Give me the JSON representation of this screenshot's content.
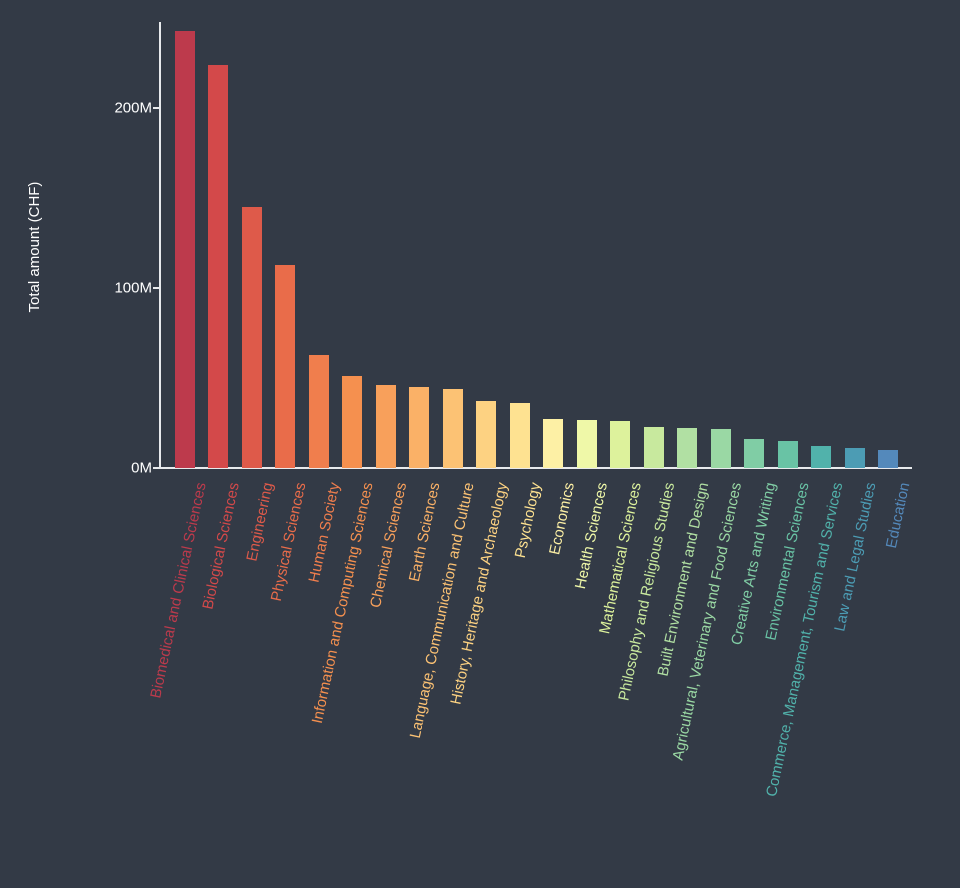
{
  "chart_data": {
    "type": "bar",
    "title": "",
    "xlabel": "",
    "ylabel": "Total amount (CHF)",
    "ylim": [
      0,
      250
    ],
    "grid": false,
    "legend": "none",
    "yticks": [
      {
        "value": 0,
        "label": "0M"
      },
      {
        "value": 100,
        "label": "100M"
      },
      {
        "value": 200,
        "label": "200M"
      }
    ],
    "categories": [
      "Biomedical and Clinical Sciences",
      "Biological Sciences",
      "Engineering",
      "Physical Sciences",
      "Human Society",
      "Information and Computing Sciences",
      "Chemical Sciences",
      "Earth Sciences",
      "Language, Communication and Culture",
      "History, Heritage and Archaeology",
      "Psychology",
      "Economics",
      "Health Sciences",
      "Mathematical Sciences",
      "Philosophy and Religious Studies",
      "Built Environment and Design",
      "Agricultural, Veterinary and Food Sciences",
      "Creative Arts and Writing",
      "Environmental Sciences",
      "Commerce, Management, Tourism and Services",
      "Law and Legal Studies",
      "Education"
    ],
    "values": [
      243,
      224,
      145,
      113,
      63,
      51,
      46,
      45,
      44,
      37,
      36,
      27,
      26.5,
      26,
      23,
      22,
      21.5,
      16,
      15,
      12,
      11,
      10
    ],
    "unit": "M CHF",
    "colors": [
      "#bd3a4c",
      "#d3494a",
      "#de5a4a",
      "#e96c4a",
      "#f07e4d",
      "#f5904f",
      "#f8a05b",
      "#fab167",
      "#fcc274",
      "#fdd282",
      "#fee291",
      "#fdf0a5",
      "#eff8a8",
      "#ddf29c",
      "#c8e99e",
      "#b1e0a3",
      "#9ad8a4",
      "#80cda5",
      "#69c3a5",
      "#51b2ab",
      "#4c9cb4",
      "#5489bb"
    ]
  },
  "colors": {
    "background": "#333a46",
    "axis": "#e8eaed",
    "tick_text": "#ffffff"
  }
}
